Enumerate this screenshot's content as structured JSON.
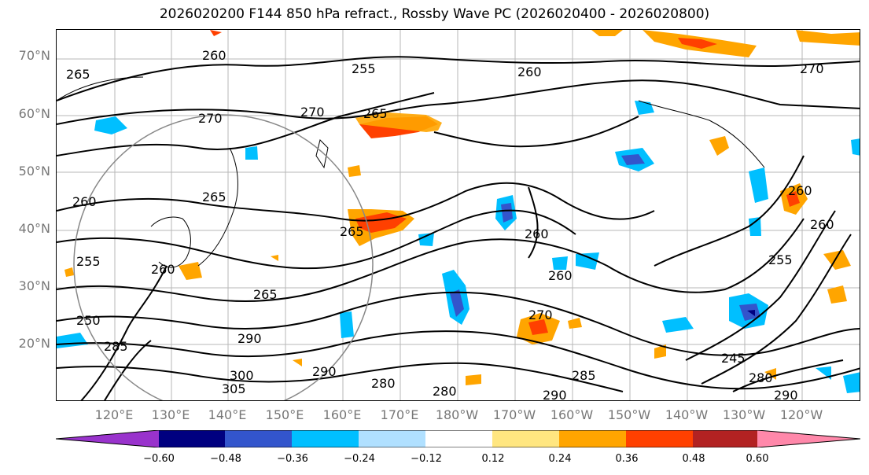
{
  "title": "2026020200 F144 850 hPa refract., Rossby Wave PC (2026020400 - 2026020800)",
  "lat_labels": [
    "70°N",
    "60°N",
    "50°N",
    "40°N",
    "30°N",
    "20°N"
  ],
  "lon_labels": [
    "120°E",
    "130°E",
    "140°E",
    "150°E",
    "160°E",
    "170°E",
    "180°W",
    "170°W",
    "160°W",
    "150°W",
    "140°W",
    "130°W",
    "120°W"
  ],
  "colorbar": {
    "ticks": [
      "−0.60",
      "−0.48",
      "−0.36",
      "−0.24",
      "−0.12",
      "0.12",
      "0.24",
      "0.36",
      "0.48",
      "0.60"
    ],
    "colors": [
      "#9933cc",
      "#000080",
      "#3355cc",
      "#00bfff",
      "#b0e0ff",
      "#ffffff",
      "#ffe680",
      "#ffa500",
      "#ff4000",
      "#b22222",
      "#ff88aa"
    ]
  },
  "contour_labels": [
    "260",
    "255",
    "265",
    "260",
    "270",
    "270",
    "265",
    "260",
    "265",
    "265",
    "260",
    "255",
    "260",
    "265",
    "250",
    "285",
    "270",
    "290",
    "300",
    "305",
    "290",
    "280",
    "280",
    "290",
    "285",
    "260",
    "245",
    "280",
    "290",
    "255",
    "260",
    "260",
    "270"
  ]
}
